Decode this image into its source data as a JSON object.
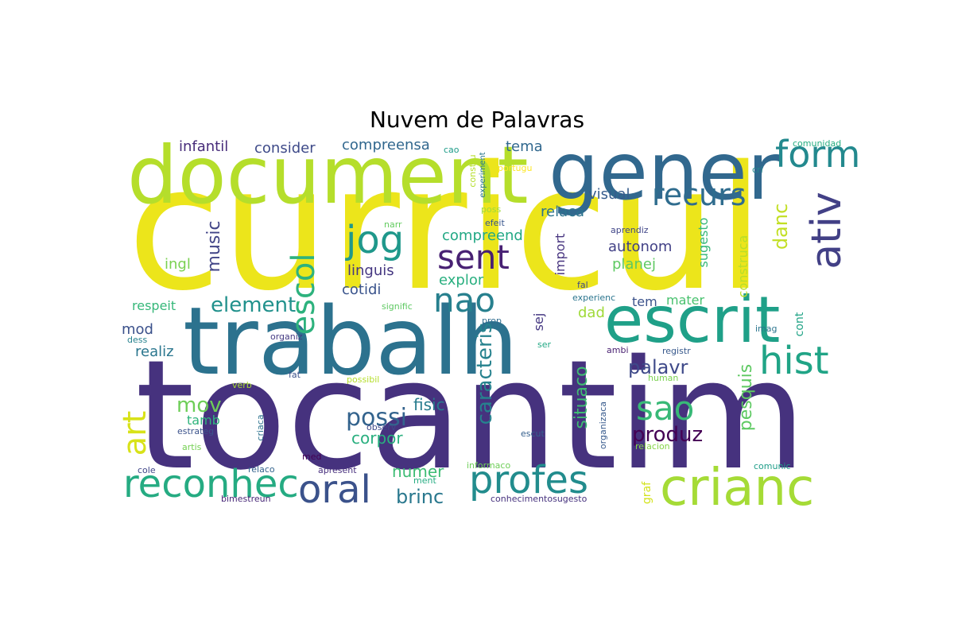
{
  "title": "Nuvem de Palavras",
  "chart_data": {
    "type": "wordcloud",
    "title": "Nuvem de Palavras",
    "colormap": "viridis",
    "words": [
      {
        "text": "curricul",
        "color": "#ece51b"
      },
      {
        "text": "tocantim",
        "color": "#46327e"
      },
      {
        "text": "trabalh",
        "color": "#2c728e"
      },
      {
        "text": "document",
        "color": "#b5de2b"
      },
      {
        "text": "gener",
        "color": "#31688e"
      },
      {
        "text": "escrit",
        "color": "#1fa088"
      },
      {
        "text": "crianc",
        "color": "#a5db36"
      },
      {
        "text": "profes",
        "color": "#228c8d"
      },
      {
        "text": "reconhec",
        "color": "#25ab82"
      },
      {
        "text": "oral",
        "color": "#3b528b"
      },
      {
        "text": "hist",
        "color": "#20a486"
      },
      {
        "text": "form",
        "color": "#23898e"
      },
      {
        "text": "recurs",
        "color": "#2f6c8e"
      },
      {
        "text": "ativ",
        "color": "#424086"
      },
      {
        "text": "jog",
        "color": "#1f988b"
      },
      {
        "text": "sent",
        "color": "#482173"
      },
      {
        "text": "nao",
        "color": "#27808e"
      },
      {
        "text": "sao",
        "color": "#38b977"
      },
      {
        "text": "art",
        "color": "#d8e219"
      },
      {
        "text": "escol",
        "color": "#2db27d"
      },
      {
        "text": "element",
        "color": "#21918c"
      },
      {
        "text": "music",
        "color": "#414487"
      },
      {
        "text": "mov",
        "color": "#6ece58"
      },
      {
        "text": "possi",
        "color": "#33638d"
      },
      {
        "text": "caracteris",
        "color": "#26828e"
      },
      {
        "text": "situaco",
        "color": "#3fbc73"
      },
      {
        "text": "produz",
        "color": "#440154"
      },
      {
        "text": "palavr",
        "color": "#3e4989"
      },
      {
        "text": "pesquis",
        "color": "#5ec962"
      },
      {
        "text": "danc",
        "color": "#c2df23"
      },
      {
        "text": "brinc",
        "color": "#2a788e"
      },
      {
        "text": "numer",
        "color": "#3dbc74"
      },
      {
        "text": "corpor",
        "color": "#29af7f"
      },
      {
        "text": "fisic",
        "color": "#287c8e"
      },
      {
        "text": "infantil",
        "color": "#472c7a"
      },
      {
        "text": "consider",
        "color": "#3e4a89"
      },
      {
        "text": "compreensa",
        "color": "#31678e"
      },
      {
        "text": "tema",
        "color": "#31688e"
      },
      {
        "text": "visual",
        "color": "#365c8d"
      },
      {
        "text": "relaca",
        "color": "#2c738e"
      },
      {
        "text": "compreend",
        "color": "#22a884"
      },
      {
        "text": "autonom",
        "color": "#424186"
      },
      {
        "text": "planej",
        "color": "#5ec962"
      },
      {
        "text": "import",
        "color": "#46337f"
      },
      {
        "text": "linguis",
        "color": "#453781"
      },
      {
        "text": "cotidi",
        "color": "#3a548c"
      },
      {
        "text": "explor",
        "color": "#29af7f"
      },
      {
        "text": "ingl",
        "color": "#7ad151"
      },
      {
        "text": "respeit",
        "color": "#35b779"
      },
      {
        "text": "mod",
        "color": "#3b518b"
      },
      {
        "text": "realiz",
        "color": "#2a768e"
      },
      {
        "text": "tamb",
        "color": "#2fb47c"
      },
      {
        "text": "sej",
        "color": "#453882"
      },
      {
        "text": "dad",
        "color": "#a0da39"
      },
      {
        "text": "tem",
        "color": "#3b528b"
      },
      {
        "text": "mater",
        "color": "#48c16e"
      },
      {
        "text": "sugesto",
        "color": "#35b779"
      },
      {
        "text": "construca",
        "color": "#b8de29"
      },
      {
        "text": "cont",
        "color": "#20a386"
      },
      {
        "text": "graf",
        "color": "#d2e21b"
      },
      {
        "text": "cao",
        "color": "#1e9c89"
      },
      {
        "text": "constru",
        "color": "#b5de2b"
      },
      {
        "text": "experiment",
        "color": "#2a778e"
      },
      {
        "text": "portugu",
        "color": "#fde725"
      },
      {
        "text": "comunidad",
        "color": "#27ad81"
      },
      {
        "text": "cri",
        "color": "#24868e"
      },
      {
        "text": "poss",
        "color": "#9dd93b"
      },
      {
        "text": "efeit",
        "color": "#39568c"
      },
      {
        "text": "narr",
        "color": "#63cb5f"
      },
      {
        "text": "aprendiz",
        "color": "#404688"
      },
      {
        "text": "fal",
        "color": "#3e4989"
      },
      {
        "text": "experienc",
        "color": "#2b758e"
      },
      {
        "text": "signific",
        "color": "#5ec962"
      },
      {
        "text": "prop",
        "color": "#2f6c8e"
      },
      {
        "text": "imag",
        "color": "#2b758e"
      },
      {
        "text": "organiz",
        "color": "#443a83"
      },
      {
        "text": "ser",
        "color": "#22a884"
      },
      {
        "text": "ambi",
        "color": "#481f70"
      },
      {
        "text": "registr",
        "color": "#38598c"
      },
      {
        "text": "human",
        "color": "#7ad151"
      },
      {
        "text": "dess",
        "color": "#26828e"
      },
      {
        "text": "fat",
        "color": "#3b528b"
      },
      {
        "text": "verb",
        "color": "#a8db34"
      },
      {
        "text": "possibil",
        "color": "#b5de2b"
      },
      {
        "text": "observ",
        "color": "#3f4889"
      },
      {
        "text": "estrateg",
        "color": "#3b528b"
      },
      {
        "text": "criaca",
        "color": "#2c728e"
      },
      {
        "text": "organizaca",
        "color": "#375a8c"
      },
      {
        "text": "escut",
        "color": "#355f8d"
      },
      {
        "text": "relacion",
        "color": "#86d549"
      },
      {
        "text": "artis",
        "color": "#75d054"
      },
      {
        "text": "med",
        "color": "#440154"
      },
      {
        "text": "cole",
        "color": "#404688"
      },
      {
        "text": "relaco",
        "color": "#33638d"
      },
      {
        "text": "apresent",
        "color": "#472f7d"
      },
      {
        "text": "informaco",
        "color": "#6ece58"
      },
      {
        "text": "comunic",
        "color": "#1f9e89"
      },
      {
        "text": "ment",
        "color": "#25ac82"
      },
      {
        "text": "bimestreun",
        "color": "#482878"
      },
      {
        "text": "conhecimentosugesto",
        "color": "#46327e"
      }
    ]
  }
}
